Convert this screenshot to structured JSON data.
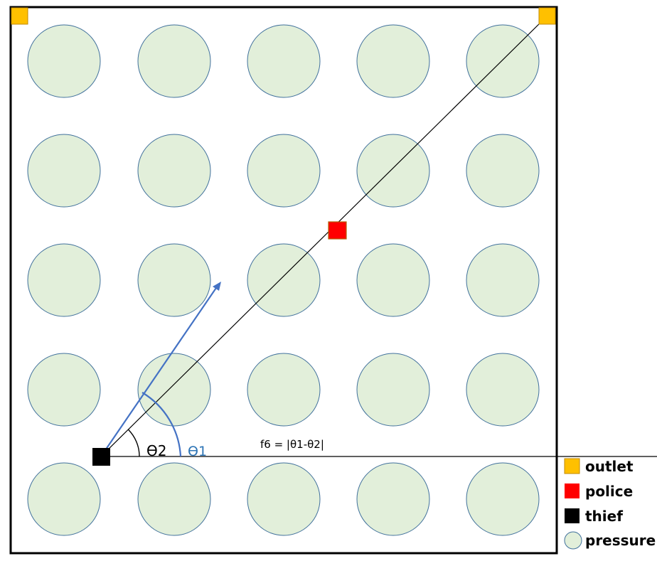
{
  "colors": {
    "outlet": "#FFC000",
    "outlet_stroke": "#C08A00",
    "police": "#FF0000",
    "police_stroke": "#B45F06",
    "thief": "#000000",
    "pressure_fill": "#E2EFDA",
    "pressure_stroke": "#41719C",
    "arrow": "#4472C4",
    "theta1_label": "#2E75B6",
    "line": "#000000"
  },
  "grid": {
    "rows": 5,
    "cols": 5
  },
  "labels": {
    "theta2": "Ɵ2",
    "theta1": "Ɵ1",
    "formula": "f6 = |θ1-θ2|"
  },
  "legend": [
    {
      "label": "outlet",
      "symbol": "outlet"
    },
    {
      "label": "police",
      "symbol": "police"
    },
    {
      "label": "thief",
      "symbol": "thief"
    },
    {
      "label": "pressure",
      "symbol": "pressure"
    }
  ]
}
